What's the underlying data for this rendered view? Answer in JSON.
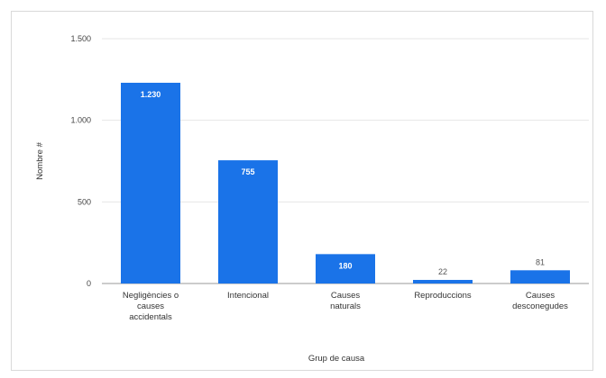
{
  "chart_data": {
    "type": "bar",
    "categories": [
      [
        "Negligències o",
        "causes",
        "accidentals"
      ],
      [
        "Intencional"
      ],
      [
        "Causes",
        "naturals"
      ],
      [
        "Reproduccions"
      ],
      [
        "Causes",
        "desconegudes"
      ]
    ],
    "values": [
      1230,
      755,
      180,
      22,
      81
    ],
    "data_labels": [
      "1.230",
      "755",
      "180",
      "22",
      "81"
    ],
    "yticks": [
      0,
      500,
      1000,
      1500
    ],
    "ytick_labels": [
      "0",
      "500",
      "1.000",
      "1.500"
    ],
    "ylim": [
      0,
      1500
    ],
    "xlabel": "Grup de causa",
    "ylabel": "Nombre #",
    "grid": true,
    "legend": false,
    "colors": {
      "bar": "#1a73e8",
      "grid": "#e6e6e6",
      "axis": "#999999"
    }
  }
}
